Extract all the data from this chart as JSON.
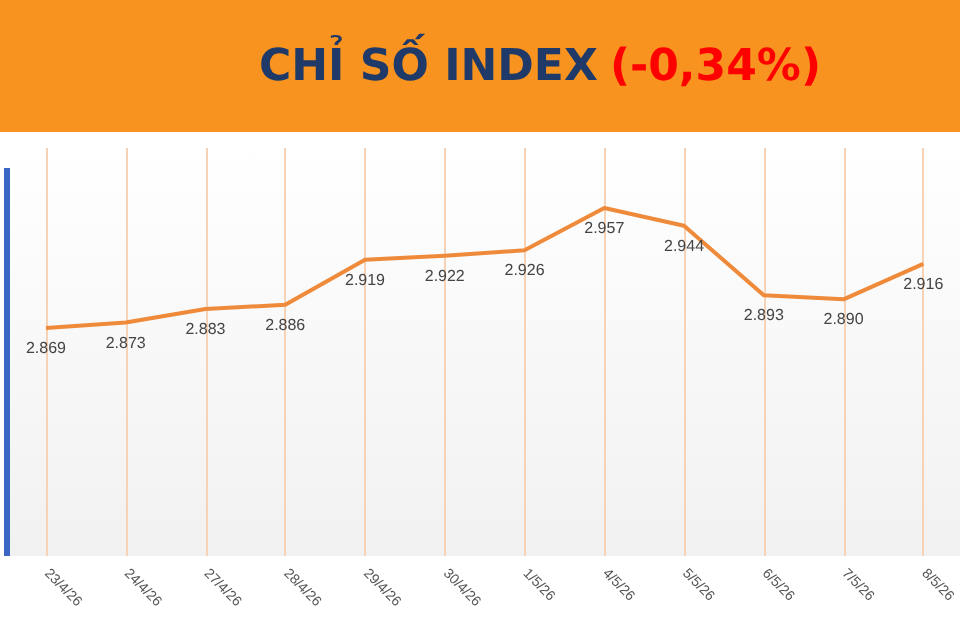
{
  "chart_data": {
    "type": "line",
    "title": "CHỈ SỐ INDEX",
    "subtitle": "(-0,34%)",
    "categories": [
      "23/4/26",
      "24/4/26",
      "27/4/26",
      "28/4/26",
      "29/4/26",
      "30/4/26",
      "1/5/26",
      "4/5/26",
      "5/5/26",
      "6/5/26",
      "7/5/26",
      "8/5/26"
    ],
    "series": [
      {
        "color": "#ee8a3a",
        "values": [
          2869,
          2873,
          2883,
          2886,
          2919,
          2922,
          2926,
          2957,
          2944,
          2893,
          2890,
          2916
        ],
        "value_labels": [
          "2.869",
          "2.873",
          "2.883",
          "2.886",
          "2.919",
          "2.922",
          "2.926",
          "2.957",
          "2.944",
          "2.893",
          "2.890",
          "2.916"
        ]
      }
    ],
    "grid": "x",
    "marker": "none",
    "line_style": "solid",
    "tick_labels": "x"
  }
}
